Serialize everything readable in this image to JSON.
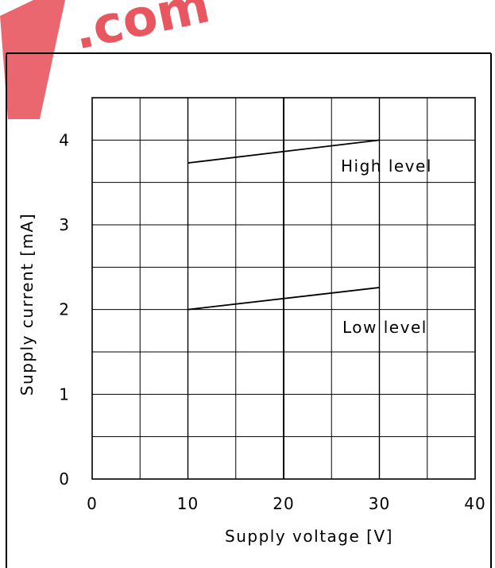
{
  "watermark": {
    "text": ".com",
    "color": "#e8575f"
  },
  "chart_data": {
    "type": "line",
    "xlabel": "Supply voltage [V]",
    "ylabel": "Supply current [mA]",
    "xlim": [
      0,
      40
    ],
    "ylim": [
      0,
      4.5
    ],
    "xticks": [
      "0",
      "10",
      "20",
      "30",
      "40"
    ],
    "yticks": [
      "0",
      "1",
      "2",
      "3",
      "4"
    ],
    "grid": true,
    "series": [
      {
        "name": "High level",
        "x": [
          10,
          30
        ],
        "y": [
          3.73,
          4.0
        ]
      },
      {
        "name": "Low level",
        "x": [
          10,
          30
        ],
        "y": [
          2.0,
          2.26
        ]
      }
    ],
    "colors": {
      "line": "#000000",
      "grid": "#000000",
      "background": "#ffffff"
    }
  }
}
